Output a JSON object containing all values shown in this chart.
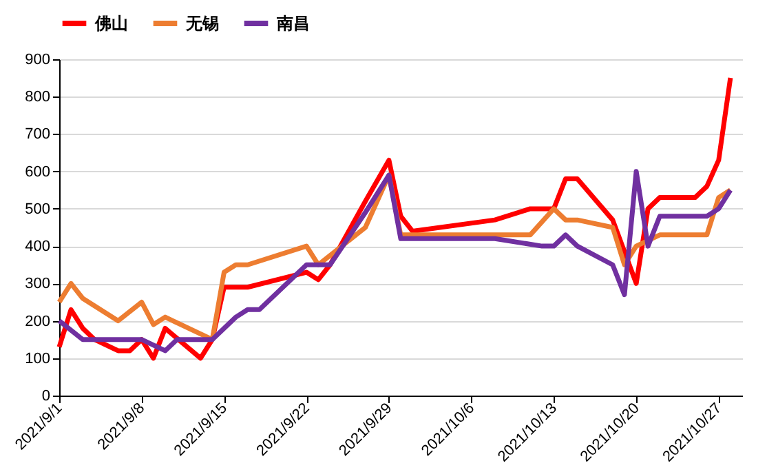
{
  "chart_data": {
    "type": "line",
    "legend": "top",
    "grid": "y",
    "line_style": "solid",
    "marker": "none",
    "xlim": [
      "2021-09-01",
      "2021-10-29"
    ],
    "xticks": [
      {
        "value": "2021-09-01",
        "label": "2021/9/1"
      },
      {
        "value": "2021-09-08",
        "label": "2021/9/8"
      },
      {
        "value": "2021-09-15",
        "label": "2021/9/15"
      },
      {
        "value": "2021-09-22",
        "label": "2021/9/22"
      },
      {
        "value": "2021-09-29",
        "label": "2021/9/29"
      },
      {
        "value": "2021-10-06",
        "label": "2021/10/6"
      },
      {
        "value": "2021-10-13",
        "label": "2021/10/13"
      },
      {
        "value": "2021-10-20",
        "label": "2021/10/20"
      },
      {
        "value": "2021-10-27",
        "label": "2021/10/27"
      }
    ],
    "ylim": [
      0,
      900
    ],
    "yticks": [
      0,
      100,
      200,
      300,
      400,
      500,
      600,
      700,
      800,
      900
    ],
    "series": [
      {
        "name": "佛山",
        "color": "#ff0000",
        "x": [
          "2021-09-01",
          "2021-09-02",
          "2021-09-03",
          "2021-09-04",
          "2021-09-06",
          "2021-09-07",
          "2021-09-08",
          "2021-09-09",
          "2021-09-10",
          "2021-09-13",
          "2021-09-14",
          "2021-09-15",
          "2021-09-17",
          "2021-09-22",
          "2021-09-23",
          "2021-09-24",
          "2021-09-27",
          "2021-09-29",
          "2021-09-30",
          "2021-10-01",
          "2021-10-08",
          "2021-10-11",
          "2021-10-13",
          "2021-10-14",
          "2021-10-15",
          "2021-10-18",
          "2021-10-20",
          "2021-10-21",
          "2021-10-22",
          "2021-10-25",
          "2021-10-26",
          "2021-10-27",
          "2021-10-28"
        ],
        "values": [
          130,
          230,
          180,
          150,
          120,
          120,
          150,
          100,
          180,
          100,
          150,
          290,
          290,
          330,
          310,
          350,
          520,
          630,
          480,
          440,
          470,
          500,
          500,
          580,
          580,
          470,
          300,
          500,
          530,
          530,
          560,
          630,
          850
        ]
      },
      {
        "name": "无锡",
        "color": "#ed7d31",
        "x": [
          "2021-09-01",
          "2021-09-02",
          "2021-09-03",
          "2021-09-06",
          "2021-09-08",
          "2021-09-09",
          "2021-09-10",
          "2021-09-14",
          "2021-09-15",
          "2021-09-16",
          "2021-09-17",
          "2021-09-22",
          "2021-09-23",
          "2021-09-27",
          "2021-09-29",
          "2021-09-30",
          "2021-10-11",
          "2021-10-13",
          "2021-10-14",
          "2021-10-15",
          "2021-10-18",
          "2021-10-19",
          "2021-10-20",
          "2021-10-22",
          "2021-10-26",
          "2021-10-27",
          "2021-10-28"
        ],
        "values": [
          250,
          300,
          260,
          200,
          250,
          190,
          210,
          150,
          330,
          350,
          350,
          400,
          350,
          450,
          590,
          430,
          430,
          500,
          470,
          470,
          450,
          350,
          400,
          430,
          430,
          530,
          550
        ]
      },
      {
        "name": "南昌",
        "color": "#7030a0",
        "x": [
          "2021-09-01",
          "2021-09-03",
          "2021-09-08",
          "2021-09-10",
          "2021-09-11",
          "2021-09-14",
          "2021-09-16",
          "2021-09-17",
          "2021-09-18",
          "2021-09-22",
          "2021-09-24",
          "2021-09-27",
          "2021-09-29",
          "2021-09-30",
          "2021-10-08",
          "2021-10-12",
          "2021-10-13",
          "2021-10-14",
          "2021-10-15",
          "2021-10-18",
          "2021-10-19",
          "2021-10-20",
          "2021-10-21",
          "2021-10-22",
          "2021-10-26",
          "2021-10-27",
          "2021-10-28"
        ],
        "values": [
          200,
          150,
          150,
          120,
          150,
          150,
          210,
          230,
          230,
          350,
          350,
          490,
          590,
          420,
          420,
          400,
          400,
          430,
          400,
          350,
          270,
          600,
          400,
          480,
          480,
          500,
          550
        ]
      }
    ]
  }
}
